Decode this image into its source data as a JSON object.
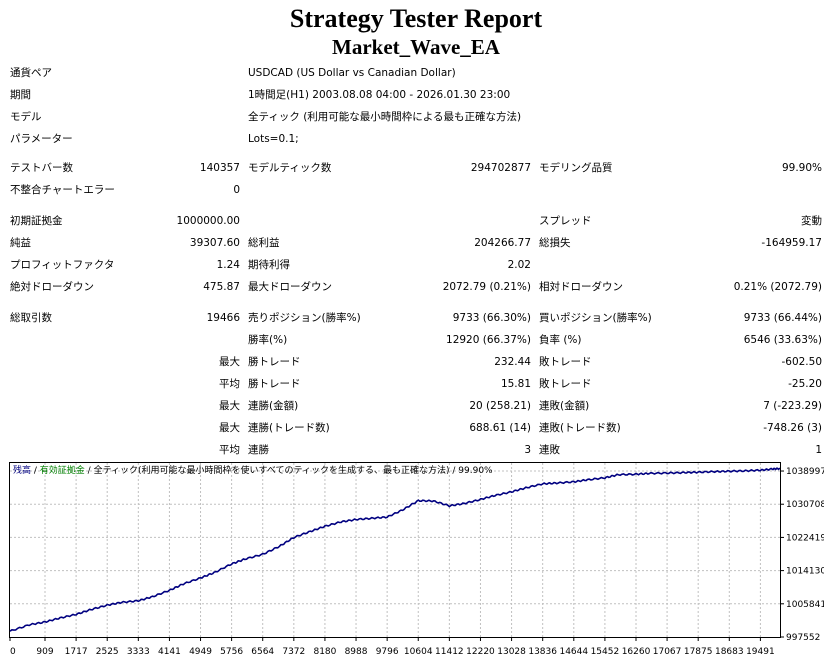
{
  "header": {
    "title": "Strategy Tester Report",
    "subtitle": "Market_Wave_EA"
  },
  "info": [
    {
      "label": "通貨ペア",
      "value": "USDCAD (US Dollar vs Canadian Dollar)"
    },
    {
      "label": "期間",
      "value": "1時間足(H1) 2003.08.08 04:00 - 2026.01.30 23:00"
    },
    {
      "label": "モデル",
      "value": "全ティック (利用可能な最小時間枠による最も正確な方法)"
    },
    {
      "label": "パラメーター",
      "value": "Lots=0.1;"
    }
  ],
  "test": {
    "bars_label": "テストバー数",
    "bars": "140357",
    "ticks_label": "モデルティック数",
    "ticks": "294702877",
    "quality_label": "モデリング品質",
    "quality": "99.90%",
    "errors_label": "不整合チャートエラー",
    "errors": "0"
  },
  "deposit": {
    "initial_label": "初期証拠金",
    "initial": "1000000.00",
    "spread_label": "スプレッド",
    "spread": "変動"
  },
  "results": {
    "net_label": "純益",
    "net": "39307.60",
    "gross_profit_label": "総利益",
    "gross_profit": "204266.77",
    "gross_loss_label": "総損失",
    "gross_loss": "-164959.17",
    "pf_label": "プロフィットファクタ",
    "pf": "1.24",
    "expected_label": "期待利得",
    "expected": "2.02",
    "abs_dd_label": "絶対ドローダウン",
    "abs_dd": "475.87",
    "max_dd_label": "最大ドローダウン",
    "max_dd": "2072.79 (0.21%)",
    "rel_dd_label": "相対ドローダウン",
    "rel_dd": "0.21% (2072.79)"
  },
  "trades": {
    "total_label": "総取引数",
    "total": "19466",
    "short_label": "売りポジション(勝率%)",
    "short": "9733 (66.30%)",
    "long_label": "買いポジション(勝率%)",
    "long": "9733 (66.44%)",
    "win_label": "勝率(%)",
    "win": "12920 (66.37%)",
    "loss_label": "負率 (%)",
    "loss": "6546 (33.63%)",
    "max": "最大",
    "avg": "平均",
    "largest_win_label": "勝トレード",
    "largest_win": "232.44",
    "largest_loss_label": "敗トレード",
    "largest_loss": "-602.50",
    "avg_win_label": "勝トレード",
    "avg_win": "15.81",
    "avg_loss_label": "敗トレード",
    "avg_loss": "-25.20",
    "cons_wins_amt_label": "連勝(金額)",
    "cons_wins_amt": "20 (258.21)",
    "cons_loss_amt_label": "連敗(金額)",
    "cons_loss_amt": "7 (-223.29)",
    "cons_wins_cnt_label": "連勝(トレード数)",
    "cons_wins_cnt": "688.61 (14)",
    "cons_loss_cnt_label": "連敗(トレード数)",
    "cons_loss_cnt": "-748.26 (3)",
    "avg_cons_wins_label": "連勝",
    "avg_cons_wins": "3",
    "avg_cons_loss_label": "連敗",
    "avg_cons_loss": "1"
  },
  "chart_legend": {
    "balance": "残高",
    "sep1": " / ",
    "margin": "有効証拠金",
    "sep2": " / ",
    "model": "全ティック(利用可能な最小時間枠を使いすべてのティックを生成する、最も正確な方法)",
    "sep3": " / ",
    "quality": "99.90%",
    "balance_color": "#000080",
    "margin_color": "#008000"
  },
  "chart_data": {
    "type": "line",
    "xlabel": "",
    "ylabel": "",
    "xlim": [
      0,
      20000
    ],
    "ylim": [
      997552,
      1041000
    ],
    "x_ticks": [
      0,
      909,
      1717,
      2525,
      3333,
      4141,
      4949,
      5756,
      6564,
      7372,
      8180,
      8988,
      9796,
      10604,
      11412,
      12220,
      13028,
      13836,
      14644,
      15452,
      16260,
      17067,
      17875,
      18683,
      19491
    ],
    "y_ticks": [
      997552,
      1005841,
      1014130,
      1022419,
      1030708,
      1038997
    ],
    "grid": true,
    "series": [
      {
        "color": "#000080",
        "x": [
          0,
          500,
          909,
          1300,
          1717,
          2100,
          2525,
          2900,
          3333,
          3700,
          4141,
          4500,
          4949,
          5300,
          5756,
          6100,
          6564,
          7000,
          7372,
          7800,
          8180,
          8600,
          8988,
          9400,
          9796,
          10200,
          10604,
          11000,
          11412,
          11800,
          12220,
          12600,
          13028,
          13400,
          13836,
          14200,
          14644,
          15000,
          15452,
          15800,
          16260,
          16600,
          17067,
          17500,
          17875,
          18300,
          18683,
          19100,
          19491,
          19800,
          20000
        ],
        "y": [
          999000,
          1000600,
          1001300,
          1002300,
          1003200,
          1004400,
          1005500,
          1006200,
          1006600,
          1007600,
          1009200,
          1010800,
          1012300,
          1013600,
          1015800,
          1017000,
          1018200,
          1020200,
          1022400,
          1023900,
          1025200,
          1026300,
          1026900,
          1027200,
          1027500,
          1029300,
          1031600,
          1031500,
          1030300,
          1030900,
          1031900,
          1032900,
          1033800,
          1034800,
          1035800,
          1036000,
          1036300,
          1036800,
          1037300,
          1038100,
          1038200,
          1038400,
          1038500,
          1038600,
          1038700,
          1038850,
          1038950,
          1039050,
          1039200,
          1039500,
          1039600
        ]
      }
    ]
  }
}
